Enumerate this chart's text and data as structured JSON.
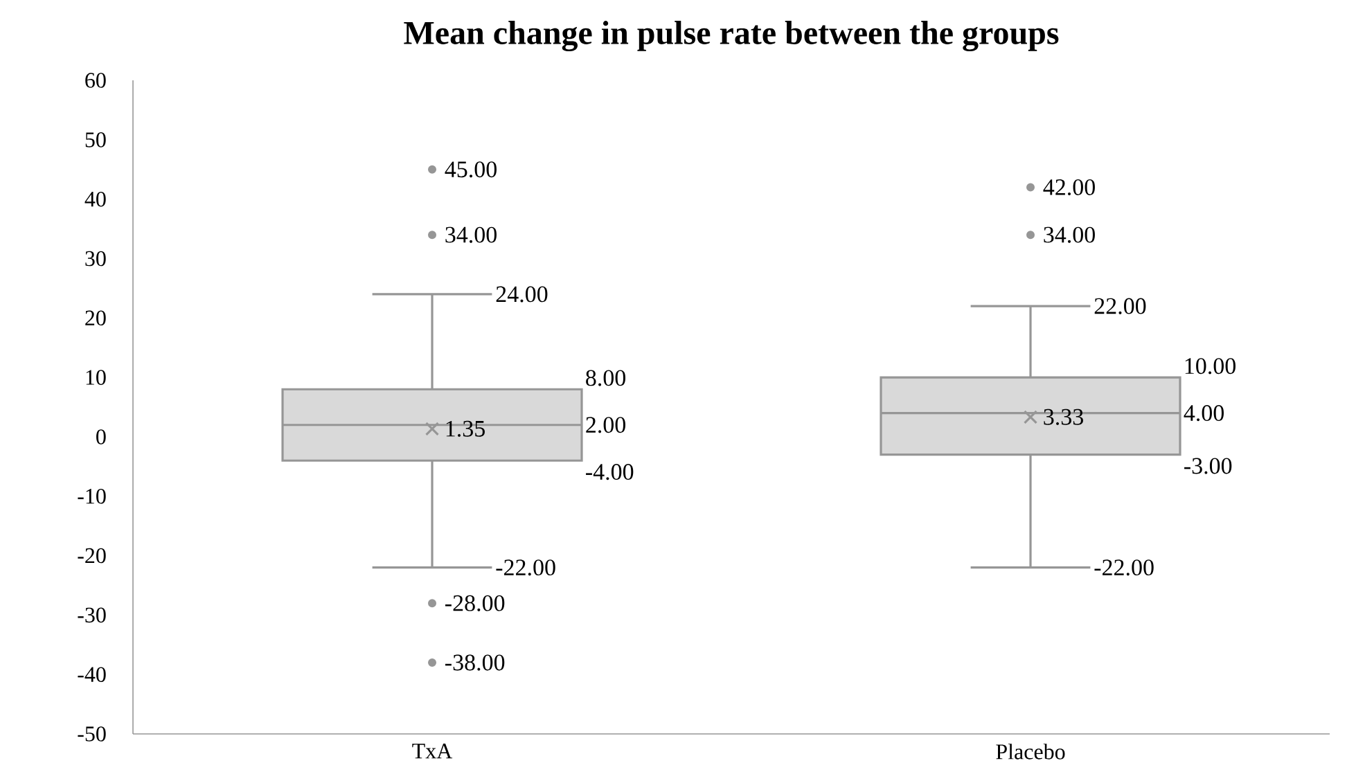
{
  "chart_data": {
    "type": "box",
    "title": "Mean change in pulse rate between the groups",
    "categories": [
      "TxA",
      "Placebo"
    ],
    "boxes": [
      {
        "low": -22,
        "q1": -4,
        "median": 2,
        "q3": 8,
        "high": 24,
        "mean": 1.35,
        "outliers": [
          45,
          34,
          -28,
          -38
        ]
      },
      {
        "low": -22,
        "q1": -3,
        "median": 4,
        "q3": 10,
        "high": 22,
        "mean": 3.33,
        "outliers": [
          42,
          34
        ]
      }
    ],
    "color": "#d9d9d9",
    "ylim": [
      -50,
      60
    ],
    "yticks": [
      -50,
      -40,
      -30,
      -20,
      -10,
      0,
      10,
      20,
      30,
      40,
      50,
      60
    ],
    "annotations": [
      "45.00",
      "34.00",
      "24.00",
      "8.00",
      "1.35",
      "2.00",
      "-4.00",
      "-22.00",
      "-28.00",
      "-38.00",
      "42.00",
      "34.00",
      "22.00",
      "10.00",
      "3.33",
      "4.00",
      "-3.00",
      "-22.00"
    ]
  }
}
